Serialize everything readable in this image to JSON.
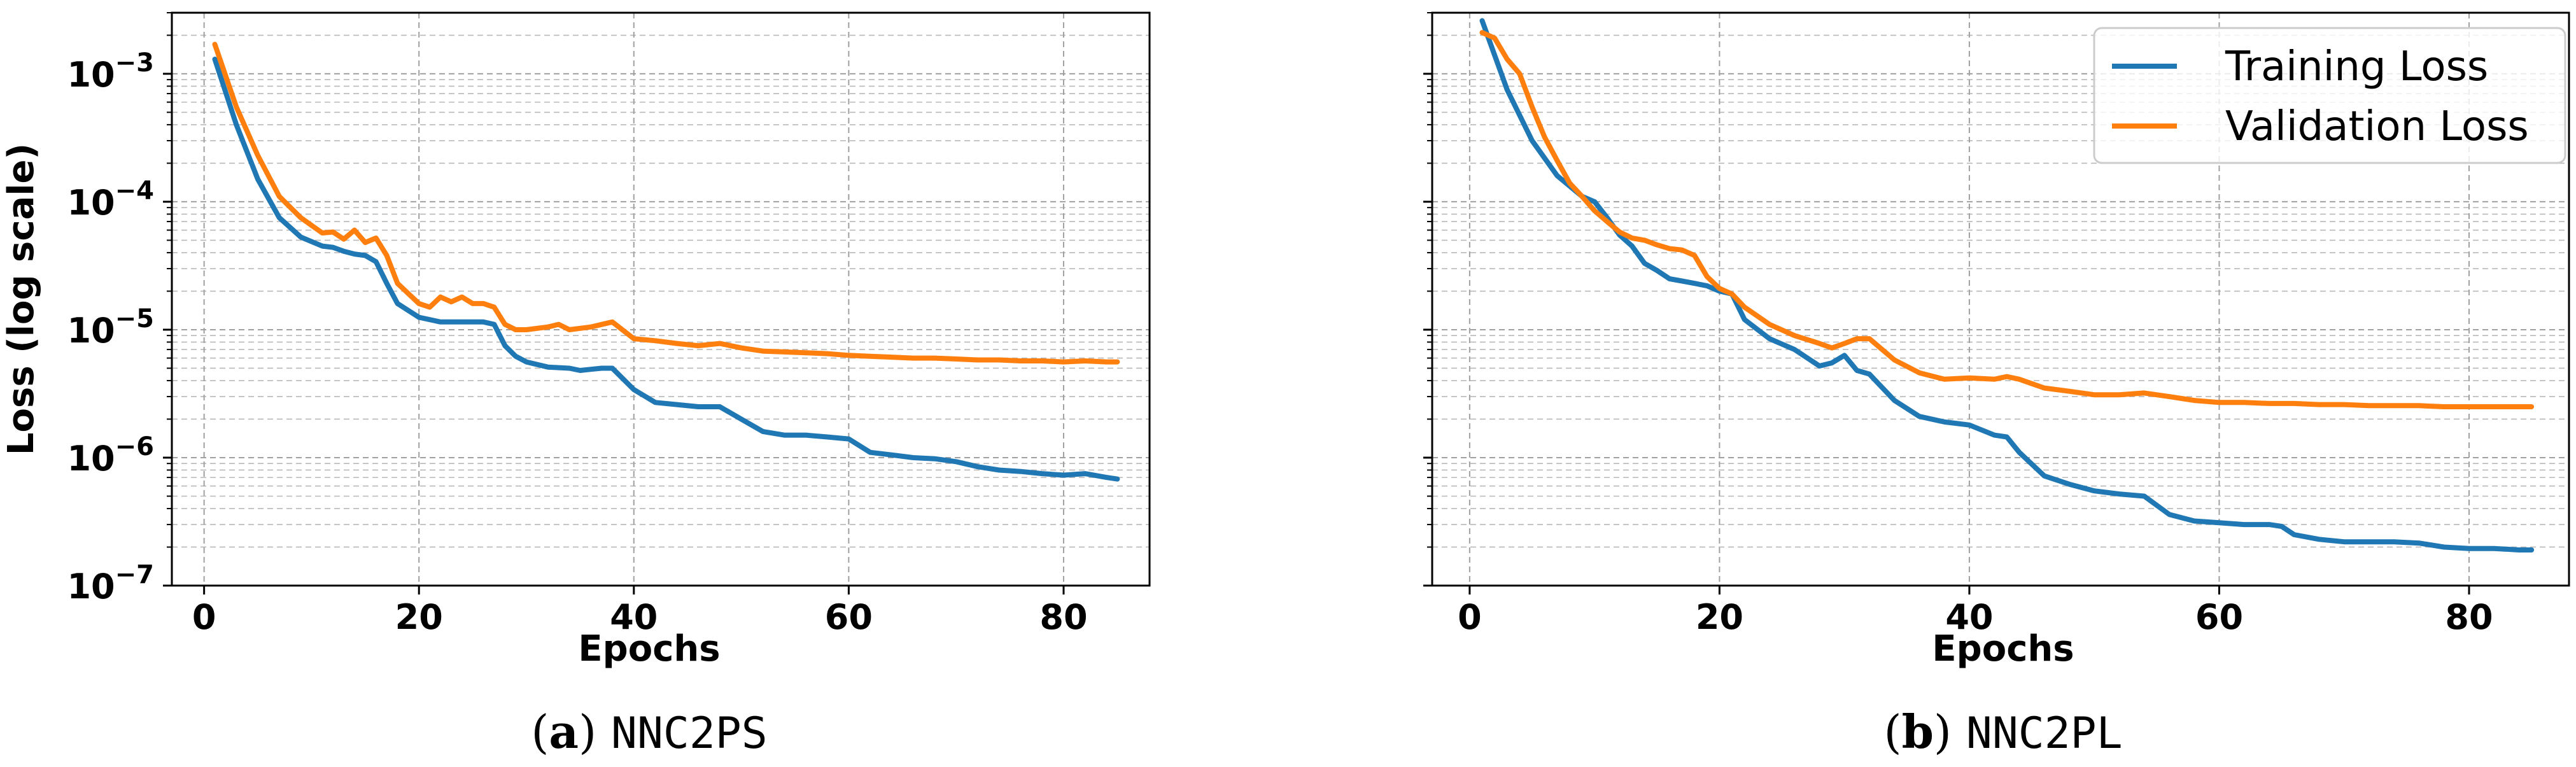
{
  "captions": [
    {
      "letter": "a",
      "name": "NNC2PS"
    },
    {
      "letter": "b",
      "name": "NNC2PL"
    }
  ],
  "chart_data": [
    {
      "type": "line",
      "title": "",
      "xlabel": "Epochs",
      "ylabel": "Loss (log scale)",
      "yscale": "log",
      "xlim": [
        -3,
        88
      ],
      "ylim": [
        1e-07,
        0.003
      ],
      "xticks": [
        0,
        20,
        40,
        60,
        80
      ],
      "yticks": [
        {
          "v": 0.001,
          "label": "10^-3"
        },
        {
          "v": 0.0001,
          "label": "10^-4"
        },
        {
          "v": 1e-05,
          "label": "10^-5"
        },
        {
          "v": 1e-06,
          "label": "10^-6"
        },
        {
          "v": 1e-07,
          "label": "10^-7"
        }
      ],
      "grid": true,
      "legend": "none",
      "series": [
        {
          "name": "Training Loss",
          "color": "#1f77b4",
          "x": [
            1,
            3,
            5,
            7,
            9,
            11,
            12,
            13,
            14,
            15,
            16,
            17,
            18,
            20,
            22,
            24,
            26,
            27,
            28,
            29,
            30,
            32,
            34,
            35,
            36,
            37,
            38,
            40,
            42,
            44,
            46,
            48,
            50,
            52,
            54,
            56,
            58,
            60,
            62,
            64,
            66,
            68,
            70,
            72,
            74,
            76,
            78,
            80,
            82,
            84,
            85
          ],
          "y": [
            0.0013,
            0.0004,
            0.00015,
            7.5e-05,
            5.3e-05,
            4.5e-05,
            4.4e-05,
            4.1e-05,
            3.9e-05,
            3.8e-05,
            3.4e-05,
            2.3e-05,
            1.6e-05,
            1.25e-05,
            1.15e-05,
            1.15e-05,
            1.15e-05,
            1.1e-05,
            7.5e-06,
            6.2e-06,
            5.6e-06,
            5.1e-06,
            5e-06,
            4.8e-06,
            4.9e-06,
            5e-06,
            5e-06,
            3.4e-06,
            2.7e-06,
            2.6e-06,
            2.5e-06,
            2.5e-06,
            2e-06,
            1.6e-06,
            1.5e-06,
            1.5e-06,
            1.45e-06,
            1.4e-06,
            1.1e-06,
            1.05e-06,
            1e-06,
            9.8e-07,
            9.3e-07,
            8.5e-07,
            8e-07,
            7.8e-07,
            7.5e-07,
            7.3e-07,
            7.5e-07,
            7e-07,
            6.8e-07
          ]
        },
        {
          "name": "Validation Loss",
          "color": "#ff7f0e",
          "x": [
            1,
            3,
            5,
            7,
            9,
            11,
            12,
            13,
            14,
            15,
            16,
            17,
            18,
            20,
            21,
            22,
            23,
            24,
            25,
            26,
            27,
            28,
            29,
            30,
            32,
            33,
            34,
            36,
            38,
            40,
            42,
            44,
            46,
            48,
            50,
            52,
            54,
            56,
            58,
            60,
            62,
            64,
            66,
            68,
            70,
            72,
            74,
            76,
            78,
            80,
            82,
            84,
            85
          ],
          "y": [
            0.0017,
            0.00055,
            0.00023,
            0.00011,
            7.5e-05,
            5.7e-05,
            5.8e-05,
            5.1e-05,
            6e-05,
            4.8e-05,
            5.2e-05,
            3.8e-05,
            2.3e-05,
            1.6e-05,
            1.5e-05,
            1.8e-05,
            1.65e-05,
            1.8e-05,
            1.6e-05,
            1.6e-05,
            1.5e-05,
            1.1e-05,
            1e-05,
            1e-05,
            1.05e-05,
            1.1e-05,
            1e-05,
            1.05e-05,
            1.15e-05,
            8.5e-06,
            8.2e-06,
            7.8e-06,
            7.5e-06,
            7.8e-06,
            7.2e-06,
            6.8e-06,
            6.7e-06,
            6.6e-06,
            6.5e-06,
            6.3e-06,
            6.2e-06,
            6.1e-06,
            6e-06,
            6e-06,
            5.9e-06,
            5.8e-06,
            5.8e-06,
            5.7e-06,
            5.7e-06,
            5.6e-06,
            5.7e-06,
            5.6e-06,
            5.6e-06
          ]
        }
      ]
    },
    {
      "type": "line",
      "title": "",
      "xlabel": "Epochs",
      "ylabel": "",
      "yscale": "log",
      "xlim": [
        -3,
        88
      ],
      "ylim": [
        1e-07,
        0.003
      ],
      "xticks": [
        0,
        20,
        40,
        60,
        80
      ],
      "grid": true,
      "legend": "top-right",
      "series": [
        {
          "name": "Training Loss",
          "color": "#1f77b4",
          "x": [
            1,
            3,
            5,
            7,
            9,
            10,
            11,
            12,
            13,
            14,
            15,
            16,
            17,
            18,
            19,
            20,
            21,
            22,
            24,
            26,
            28,
            29,
            30,
            31,
            32,
            34,
            36,
            38,
            40,
            42,
            43,
            44,
            46,
            48,
            50,
            52,
            54,
            56,
            58,
            60,
            62,
            64,
            65,
            66,
            68,
            70,
            72,
            74,
            76,
            78,
            80,
            82,
            84,
            85
          ],
          "y": [
            0.0026,
            0.00075,
            0.0003,
            0.00016,
            0.00011,
            0.0001,
            7.5e-05,
            5.5e-05,
            4.5e-05,
            3.3e-05,
            2.9e-05,
            2.5e-05,
            2.4e-05,
            2.3e-05,
            2.2e-05,
            2e-05,
            1.9e-05,
            1.2e-05,
            8.5e-06,
            7e-06,
            5.2e-06,
            5.5e-06,
            6.3e-06,
            4.8e-06,
            4.5e-06,
            2.8e-06,
            2.1e-06,
            1.9e-06,
            1.8e-06,
            1.5e-06,
            1.45e-06,
            1.1e-06,
            7.2e-07,
            6.2e-07,
            5.5e-07,
            5.2e-07,
            5e-07,
            3.6e-07,
            3.2e-07,
            3.1e-07,
            3e-07,
            3e-07,
            2.9e-07,
            2.5e-07,
            2.3e-07,
            2.2e-07,
            2.2e-07,
            2.2e-07,
            2.15e-07,
            2e-07,
            1.95e-07,
            1.95e-07,
            1.9e-07,
            1.9e-07
          ]
        },
        {
          "name": "Validation Loss",
          "color": "#ff7f0e",
          "x": [
            1,
            2,
            3,
            4,
            5,
            6,
            7,
            8,
            9,
            10,
            11,
            12,
            13,
            14,
            15,
            16,
            17,
            18,
            19,
            20,
            21,
            22,
            24,
            26,
            28,
            29,
            30,
            31,
            32,
            34,
            36,
            38,
            40,
            42,
            43,
            44,
            46,
            48,
            50,
            52,
            54,
            56,
            58,
            60,
            62,
            64,
            66,
            68,
            70,
            72,
            74,
            76,
            78,
            80,
            82,
            84,
            85
          ],
          "y": [
            0.0021,
            0.0019,
            0.0013,
            0.001,
            0.00055,
            0.00032,
            0.00021,
            0.00014,
            0.00011,
            8.5e-05,
            7e-05,
            5.8e-05,
            5.2e-05,
            5e-05,
            4.6e-05,
            4.3e-05,
            4.2e-05,
            3.8e-05,
            2.6e-05,
            2.1e-05,
            1.9e-05,
            1.5e-05,
            1.1e-05,
            9e-06,
            7.8e-06,
            7.2e-06,
            7.8e-06,
            8.5e-06,
            8.5e-06,
            5.8e-06,
            4.6e-06,
            4.1e-06,
            4.2e-06,
            4.1e-06,
            4.3e-06,
            4.1e-06,
            3.5e-06,
            3.3e-06,
            3.1e-06,
            3.1e-06,
            3.2e-06,
            3e-06,
            2.8e-06,
            2.7e-06,
            2.7e-06,
            2.65e-06,
            2.65e-06,
            2.6e-06,
            2.6e-06,
            2.55e-06,
            2.55e-06,
            2.55e-06,
            2.5e-06,
            2.5e-06,
            2.5e-06,
            2.5e-06,
            2.5e-06
          ]
        }
      ]
    }
  ]
}
